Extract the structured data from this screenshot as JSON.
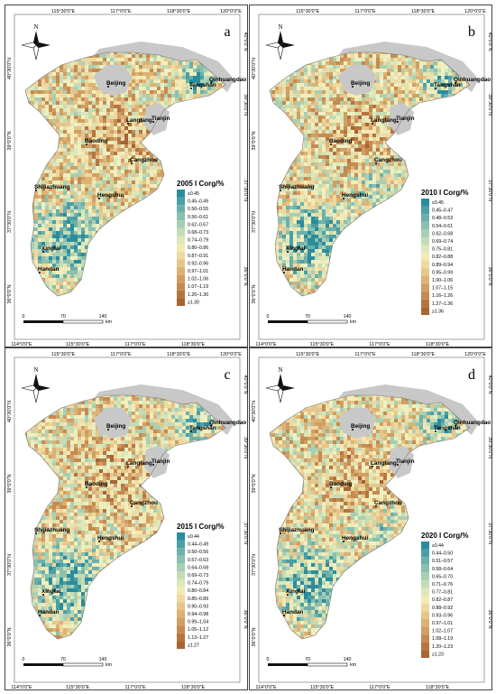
{
  "top_lon_labels": [
    "115°30'0\"E",
    "117°0'0\"E",
    "118°30'0\"E",
    "120°0'0\"E"
  ],
  "bottom_lon_labels": [
    "114°0'0\"E",
    "115°30'0\"E",
    "117°0'0\"E",
    "118°30'0\"E"
  ],
  "left_lat_labels": [
    "40°30'0\"N",
    "39°0'0\"N",
    "37°30'0\"N",
    "36°0'0\"N"
  ],
  "right_lat_labels": [
    "40°0'0\"N",
    "39°30'0\"N",
    "37°30'0\"N",
    "36°0'0\"N"
  ],
  "north_label": "N",
  "scalebar": {
    "ticks": [
      "0",
      "70",
      "140"
    ],
    "unit": "km"
  },
  "cities": [
    "Beijing",
    "Qinhuangdao",
    "Tangshan",
    "Langfang",
    "Tianjin",
    "Baoding",
    "Cangzhou",
    "Shijiazhuang",
    "Hengshui",
    "Xingtai",
    "Handan"
  ],
  "colors": {
    "ramp": [
      "#2b8c9c",
      "#4b9fa6",
      "#6cb0aa",
      "#8cc0ae",
      "#a9cfb3",
      "#c4dcb6",
      "#dce7ba",
      "#eef0c2",
      "#f3e9b4",
      "#eed9a0",
      "#e5c68c",
      "#dcb277",
      "#d19e63",
      "#c48a52",
      "#b57542",
      "#a86434"
    ],
    "outside": "#c8c8c8"
  },
  "panels": [
    {
      "label": "a",
      "legend_title": "2005 I Corg/%",
      "legend": [
        "≤0.45",
        "0.45–0.49",
        "0.50–0.55",
        "0.56–0.61",
        "0.62–0.67",
        "0.68–0.73",
        "0.74–0.79",
        "0.80–0.86",
        "0.87–0.91",
        "0.92–0.96",
        "0.97–1.01",
        "1.02–1.06",
        "1.07–1.19",
        "1.20–1.30",
        "≥1.30"
      ]
    },
    {
      "label": "b",
      "legend_title": "2010 I Corg/%",
      "legend": [
        "≤0.45",
        "0.45–0.47",
        "0.48–0.53",
        "0.54–0.61",
        "0.62–0.68",
        "0.69–0.74",
        "0.75–0.81",
        "0.82–0.88",
        "0.89–0.94",
        "0.95–0.99",
        "1.00–1.06",
        "1.07–1.15",
        "1.16–1.26",
        "1.27–1.36",
        "≥1.36"
      ]
    },
    {
      "label": "c",
      "legend_title": "2015 I Corg/%",
      "legend": [
        "≤0.44",
        "0.44–0.49",
        "0.50–0.56",
        "0.57–0.63",
        "0.64–0.68",
        "0.69–0.73",
        "0.74–0.79",
        "0.80–0.84",
        "0.85–0.89",
        "0.90–0.93",
        "0.94–0.98",
        "0.99–1.04",
        "1.05–1.12",
        "1.13–1.27",
        "≥1.27"
      ]
    },
    {
      "label": "d",
      "legend_title": "2020 I Corg/%",
      "legend": [
        "≤0.44",
        "0.44–0.50",
        "0.51–0.57",
        "0.58–0.64",
        "0.65–0.70",
        "0.71–0.76",
        "0.77–0.81",
        "0.82–0.87",
        "0.88–0.92",
        "0.93–0.96",
        "0.97–1.01",
        "1.02–1.07",
        "1.08–1.19",
        "1.20–1.23",
        "≥1.23"
      ]
    }
  ]
}
